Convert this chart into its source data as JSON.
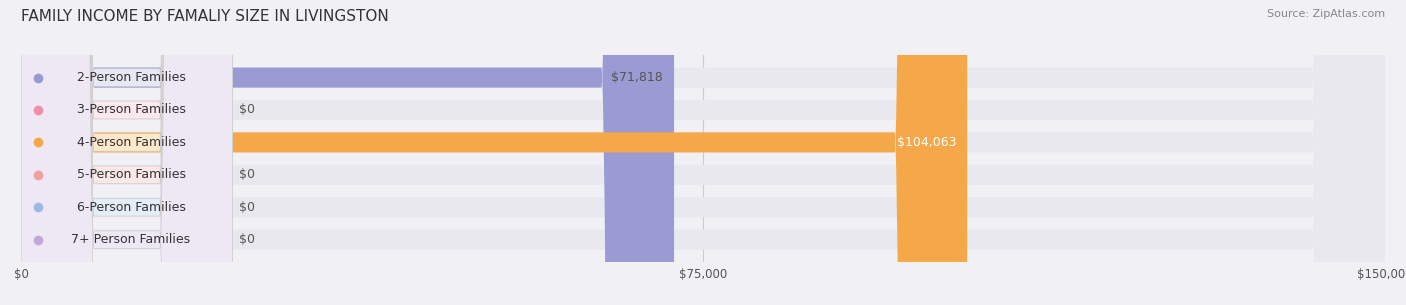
{
  "title": "FAMILY INCOME BY FAMALIY SIZE IN LIVINGSTON",
  "source": "Source: ZipAtlas.com",
  "categories": [
    "2-Person Families",
    "3-Person Families",
    "4-Person Families",
    "5-Person Families",
    "6-Person Families",
    "7+ Person Families"
  ],
  "values": [
    71818,
    0,
    104063,
    0,
    0,
    0
  ],
  "bar_colors": [
    "#9b9bd4",
    "#f090a8",
    "#f5a84a",
    "#f0a0a0",
    "#a0b8e0",
    "#c0a8d8"
  ],
  "label_bg_colors": [
    "#e8e8f4",
    "#fce8ef",
    "#fde8cc",
    "#fce8e8",
    "#e4edf8",
    "#ede8f4"
  ],
  "label_dot_colors": [
    "#9b9bd4",
    "#f090a8",
    "#f5a84a",
    "#f0a0a0",
    "#a0b8e0",
    "#c0a8d8"
  ],
  "value_labels": [
    "$71,818",
    "$0",
    "$104,063",
    "$0",
    "$0",
    "$0"
  ],
  "value_label_colors": [
    "#555555",
    "#555555",
    "#ffffff",
    "#555555",
    "#555555",
    "#555555"
  ],
  "xlim": [
    0,
    150000
  ],
  "xticks": [
    0,
    75000,
    150000
  ],
  "xtick_labels": [
    "$0",
    "$75,000",
    "$150,000"
  ],
  "background_color": "#f0f0f5",
  "bar_bg_color": "#e8e8ee",
  "bar_height": 0.62,
  "title_fontsize": 11,
  "label_fontsize": 9,
  "value_fontsize": 9
}
